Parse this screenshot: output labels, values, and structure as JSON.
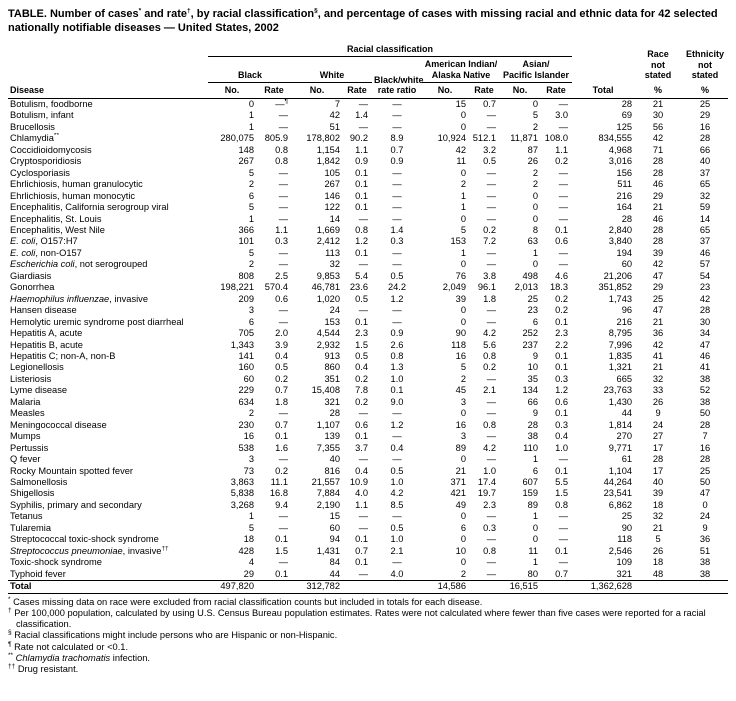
{
  "title_parts": [
    {
      "t": "TABLE. Number of cases"
    },
    {
      "sup": "*"
    },
    {
      "t": " and rate"
    },
    {
      "sup": "†"
    },
    {
      "t": ", by racial classification"
    },
    {
      "sup": "§"
    },
    {
      "t": ", and percentage of cases with missing racial and ethnic data for 42 selected nationally notifiable diseases — United States, 2002"
    }
  ],
  "table": {
    "headers": {
      "disease": "Disease",
      "group": "Racial classification",
      "black": "Black",
      "white": "White",
      "ratio": "Black/white\nrate ratio",
      "american_indian": "American Indian/\nAlaska Native",
      "asian_pacific": "Asian/\nPacific Islander",
      "no": "No.",
      "rate": "Rate",
      "total": "Total",
      "race_not_stated": "Race\nnot\nstated",
      "ethnicity_not_stated": "Ethnicity\nnot\nstated",
      "percent": "%"
    },
    "rows": [
      {
        "disease": "Botulism, foodborne",
        "cells": [
          "0",
          "—¶",
          "7",
          "—",
          "—",
          "15",
          "0.7",
          "0",
          "—",
          "28",
          "21",
          "25"
        ]
      },
      {
        "disease": "Botulism, infant",
        "cells": [
          "1",
          "—",
          "42",
          "1.4",
          "—",
          "0",
          "—",
          "5",
          "3.0",
          "69",
          "30",
          "29"
        ]
      },
      {
        "disease": "Brucellosis",
        "cells": [
          "1",
          "—",
          "51",
          "—",
          "—",
          "0",
          "—",
          "2",
          "—",
          "125",
          "56",
          "16"
        ]
      },
      {
        "disease": "Chlamydia",
        "sup": "**",
        "cells": [
          "280,075",
          "805.9",
          "178,802",
          "90.2",
          "8.9",
          "10,924",
          "512.1",
          "11,871",
          "108.0",
          "834,555",
          "42",
          "28"
        ]
      },
      {
        "disease": "Coccidioidomycosis",
        "cells": [
          "148",
          "0.8",
          "1,154",
          "1.1",
          "0.7",
          "42",
          "3.2",
          "87",
          "1.1",
          "4,968",
          "71",
          "66"
        ]
      },
      {
        "disease": "Cryptosporidiosis",
        "cells": [
          "267",
          "0.8",
          "1,842",
          "0.9",
          "0.9",
          "11",
          "0.5",
          "26",
          "0.2",
          "3,016",
          "28",
          "40"
        ]
      },
      {
        "disease": "Cyclosporiasis",
        "cells": [
          "5",
          "—",
          "105",
          "0.1",
          "—",
          "0",
          "—",
          "2",
          "—",
          "156",
          "28",
          "37"
        ]
      },
      {
        "disease": "Ehrlichiosis, human granulocytic",
        "cells": [
          "2",
          "—",
          "267",
          "0.1",
          "—",
          "2",
          "—",
          "2",
          "—",
          "511",
          "46",
          "65"
        ]
      },
      {
        "disease": "Ehrlichiosis, human monocytic",
        "cells": [
          "6",
          "—",
          "146",
          "0.1",
          "—",
          "1",
          "—",
          "0",
          "—",
          "216",
          "29",
          "32"
        ]
      },
      {
        "disease": "Encephalitis, California serogroup viral",
        "cells": [
          "5",
          "—",
          "122",
          "0.1",
          "—",
          "1",
          "—",
          "0",
          "—",
          "164",
          "21",
          "59"
        ]
      },
      {
        "disease": "Encephalitis, St. Louis",
        "cells": [
          "1",
          "—",
          "14",
          "—",
          "—",
          "0",
          "—",
          "0",
          "—",
          "28",
          "46",
          "14"
        ]
      },
      {
        "disease": "Encephalitis, West Nile",
        "cells": [
          "366",
          "1.1",
          "1,669",
          "0.8",
          "1.4",
          "5",
          "0.2",
          "8",
          "0.1",
          "2,840",
          "28",
          "65"
        ]
      },
      {
        "it": "E. coli",
        "disease": ", O157:H7",
        "cells": [
          "101",
          "0.3",
          "2,412",
          "1.2",
          "0.3",
          "153",
          "7.2",
          "63",
          "0.6",
          "3,840",
          "28",
          "37"
        ]
      },
      {
        "it": "E. coli",
        "disease": ", non-O157",
        "cells": [
          "5",
          "—",
          "113",
          "0.1",
          "—",
          "1",
          "—",
          "1",
          "—",
          "194",
          "39",
          "46"
        ]
      },
      {
        "it": "Escherichia coli",
        "disease": ", not serogrouped",
        "cells": [
          "2",
          "—",
          "32",
          "—",
          "—",
          "0",
          "—",
          "0",
          "—",
          "60",
          "42",
          "57"
        ]
      },
      {
        "disease": "Giardiasis",
        "cells": [
          "808",
          "2.5",
          "9,853",
          "5.4",
          "0.5",
          "76",
          "3.8",
          "498",
          "4.6",
          "21,206",
          "47",
          "54"
        ]
      },
      {
        "disease": "Gonorrhea",
        "cells": [
          "198,221",
          "570.4",
          "46,781",
          "23.6",
          "24.2",
          "2,049",
          "96.1",
          "2,013",
          "18.3",
          "351,852",
          "29",
          "23"
        ]
      },
      {
        "it": "Haemophilus influenzae",
        "disease": ", invasive",
        "cells": [
          "209",
          "0.6",
          "1,020",
          "0.5",
          "1.2",
          "39",
          "1.8",
          "25",
          "0.2",
          "1,743",
          "25",
          "42"
        ]
      },
      {
        "disease": "Hansen disease",
        "cells": [
          "3",
          "—",
          "24",
          "—",
          "—",
          "0",
          "—",
          "23",
          "0.2",
          "96",
          "47",
          "28"
        ]
      },
      {
        "disease": "Hemolytic uremic syndrome post diarrheal",
        "cells": [
          "6",
          "—",
          "153",
          "0.1",
          "—",
          "0",
          "—",
          "6",
          "0.1",
          "216",
          "21",
          "30"
        ]
      },
      {
        "disease": "Hepatitis A, acute",
        "cells": [
          "705",
          "2.0",
          "4,544",
          "2.3",
          "0.9",
          "90",
          "4.2",
          "252",
          "2.3",
          "8,795",
          "36",
          "34"
        ]
      },
      {
        "disease": "Hepatitis B, acute",
        "cells": [
          "1,343",
          "3.9",
          "2,932",
          "1.5",
          "2.6",
          "118",
          "5.6",
          "237",
          "2.2",
          "7,996",
          "42",
          "47"
        ]
      },
      {
        "disease": "Hepatitis C; non-A, non-B",
        "cells": [
          "141",
          "0.4",
          "913",
          "0.5",
          "0.8",
          "16",
          "0.8",
          "9",
          "0.1",
          "1,835",
          "41",
          "46"
        ]
      },
      {
        "disease": "Legionellosis",
        "cells": [
          "160",
          "0.5",
          "860",
          "0.4",
          "1.3",
          "5",
          "0.2",
          "10",
          "0.1",
          "1,321",
          "21",
          "41"
        ]
      },
      {
        "disease": "Listeriosis",
        "cells": [
          "60",
          "0.2",
          "351",
          "0.2",
          "1.0",
          "2",
          "—",
          "35",
          "0.3",
          "665",
          "32",
          "38"
        ]
      },
      {
        "disease": "Lyme disease",
        "cells": [
          "229",
          "0.7",
          "15,408",
          "7.8",
          "0.1",
          "45",
          "2.1",
          "134",
          "1.2",
          "23,763",
          "33",
          "52"
        ]
      },
      {
        "disease": "Malaria",
        "cells": [
          "634",
          "1.8",
          "321",
          "0.2",
          "9.0",
          "3",
          "—",
          "66",
          "0.6",
          "1,430",
          "26",
          "38"
        ]
      },
      {
        "disease": "Measles",
        "cells": [
          "2",
          "—",
          "28",
          "—",
          "—",
          "0",
          "—",
          "9",
          "0.1",
          "44",
          "9",
          "50"
        ]
      },
      {
        "disease": "Meningococcal disease",
        "cells": [
          "230",
          "0.7",
          "1,107",
          "0.6",
          "1.2",
          "16",
          "0.8",
          "28",
          "0.3",
          "1,814",
          "24",
          "28"
        ]
      },
      {
        "disease": "Mumps",
        "cells": [
          "16",
          "0.1",
          "139",
          "0.1",
          "—",
          "3",
          "—",
          "38",
          "0.4",
          "270",
          "27",
          "7"
        ]
      },
      {
        "disease": "Pertussis",
        "cells": [
          "538",
          "1.6",
          "7,355",
          "3.7",
          "0.4",
          "89",
          "4.2",
          "110",
          "1.0",
          "9,771",
          "17",
          "16"
        ]
      },
      {
        "disease": "Q fever",
        "cells": [
          "3",
          "—",
          "40",
          "—",
          "—",
          "0",
          "—",
          "1",
          "—",
          "61",
          "28",
          "28"
        ]
      },
      {
        "disease": "Rocky Mountain spotted fever",
        "cells": [
          "73",
          "0.2",
          "816",
          "0.4",
          "0.5",
          "21",
          "1.0",
          "6",
          "0.1",
          "1,104",
          "17",
          "25"
        ]
      },
      {
        "disease": "Salmonellosis",
        "cells": [
          "3,863",
          "11.1",
          "21,557",
          "10.9",
          "1.0",
          "371",
          "17.4",
          "607",
          "5.5",
          "44,264",
          "40",
          "50"
        ]
      },
      {
        "disease": "Shigellosis",
        "cells": [
          "5,838",
          "16.8",
          "7,884",
          "4.0",
          "4.2",
          "421",
          "19.7",
          "159",
          "1.5",
          "23,541",
          "39",
          "47"
        ]
      },
      {
        "disease": "Syphilis, primary and secondary",
        "cells": [
          "3,268",
          "9.4",
          "2,190",
          "1.1",
          "8.5",
          "49",
          "2.3",
          "89",
          "0.8",
          "6,862",
          "18",
          "0"
        ]
      },
      {
        "disease": "Tetanus",
        "cells": [
          "1",
          "—",
          "15",
          "—",
          "—",
          "0",
          "—",
          "1",
          "—",
          "25",
          "32",
          "24"
        ]
      },
      {
        "disease": "Tularemia",
        "cells": [
          "5",
          "—",
          "60",
          "—",
          "0.5",
          "6",
          "0.3",
          "0",
          "—",
          "90",
          "21",
          "9"
        ]
      },
      {
        "disease": "Streptococcal toxic-shock syndrome",
        "cells": [
          "18",
          "0.1",
          "94",
          "0.1",
          "1.0",
          "0",
          "—",
          "0",
          "—",
          "118",
          "5",
          "36"
        ]
      },
      {
        "it": "Streptococcus pneumoniae",
        "disease": ", invasive",
        "sup": "††",
        "cells": [
          "428",
          "1.5",
          "1,431",
          "0.7",
          "2.1",
          "10",
          "0.8",
          "11",
          "0.1",
          "2,546",
          "26",
          "51"
        ]
      },
      {
        "disease": "Toxic-shock syndrome",
        "cells": [
          "4",
          "—",
          "84",
          "0.1",
          "—",
          "0",
          "—",
          "1",
          "—",
          "109",
          "18",
          "38"
        ]
      },
      {
        "disease": "Typhoid fever",
        "cells": [
          "29",
          "0.1",
          "44",
          "—",
          "4.0",
          "2",
          "—",
          "80",
          "0.7",
          "321",
          "48",
          "38"
        ]
      },
      {
        "disease": "Total",
        "is_total": true,
        "cells": [
          "497,820",
          "",
          "312,782",
          "",
          "",
          "14,586",
          "",
          "16,515",
          "",
          "1,362,628",
          "",
          ""
        ]
      }
    ]
  },
  "footnotes": [
    {
      "marker": "*",
      "text": " Cases missing data on race were excluded from racial classification counts but included in totals for each disease."
    },
    {
      "marker": "†",
      "text": " Per 100,000 population, calculated by using U.S. Census Bureau population estimates. Rates were not calculated where fewer than five cases were reported for a racial classification."
    },
    {
      "marker": "§",
      "text": " Racial classifications might include persons who are Hispanic or non-Hispanic."
    },
    {
      "marker": "¶",
      "text": " Rate not calculated or <0.1."
    },
    {
      "marker": "**",
      "italic": "Chlamydia trachomatis",
      "text": " infection."
    },
    {
      "marker": "††",
      "text": " Drug resistant."
    }
  ]
}
